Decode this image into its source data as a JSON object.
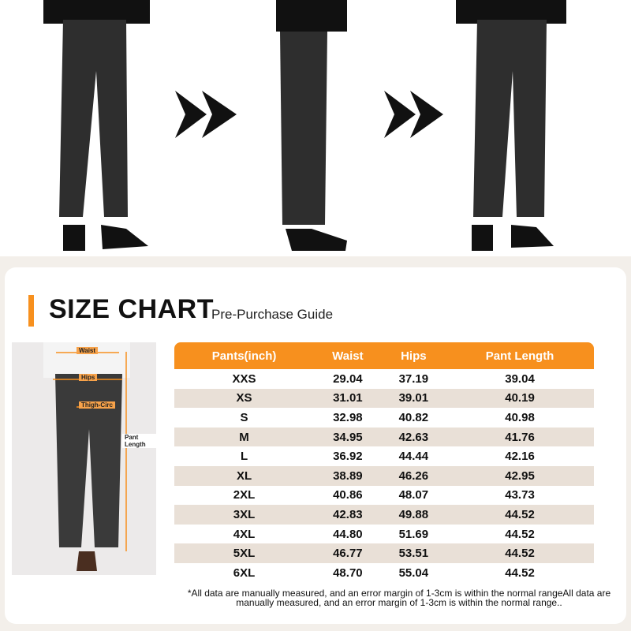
{
  "header": {
    "title": "SIZE CHART",
    "subtitle": "Pre-Purchase Guide"
  },
  "accent_color": "#f7901e",
  "measure_labels": {
    "waist": "Waist",
    "hips": "Hips",
    "thigh": "Thigh-Circ",
    "length": "Pant Length"
  },
  "table": {
    "columns": [
      "Pants(inch)",
      "Waist",
      "Hips",
      "Pant Length"
    ],
    "rows": [
      [
        "XXS",
        "29.04",
        "37.19",
        "39.04"
      ],
      [
        "XS",
        "31.01",
        "39.01",
        "40.19"
      ],
      [
        "S",
        "32.98",
        "40.82",
        "40.98"
      ],
      [
        "M",
        "34.95",
        "42.63",
        "41.76"
      ],
      [
        "L",
        "36.92",
        "44.44",
        "42.16"
      ],
      [
        "XL",
        "38.89",
        "46.26",
        "42.95"
      ],
      [
        "2XL",
        "40.86",
        "48.07",
        "43.73"
      ],
      [
        "3XL",
        "42.83",
        "49.88",
        "44.52"
      ],
      [
        "4XL",
        "44.80",
        "51.69",
        "44.52"
      ],
      [
        "5XL",
        "46.77",
        "53.51",
        "44.52"
      ],
      [
        "6XL",
        "48.70",
        "55.04",
        "44.52"
      ]
    ]
  },
  "note": "*All data are manually measured, and an error margin of 1-3cm is within the normal rangeAll data are manually measured, and an error margin of 1-3cm is within the normal range.."
}
